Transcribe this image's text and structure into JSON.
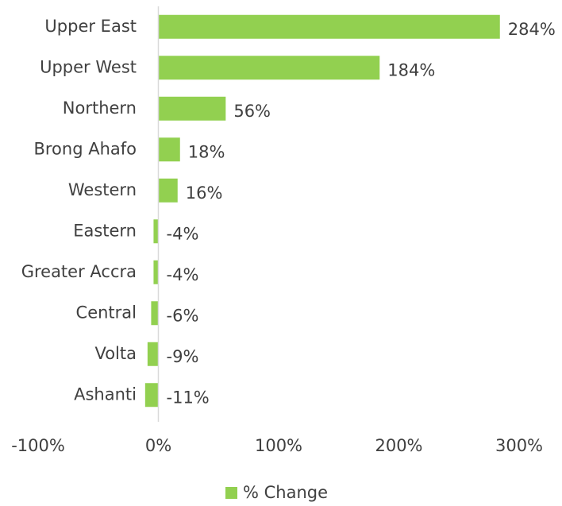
{
  "chart_data": {
    "type": "bar",
    "orientation": "horizontal",
    "categories": [
      "Upper East",
      "Upper West",
      "Northern",
      "Brong Ahafo",
      "Western",
      "Eastern",
      "Greater Accra",
      "Central",
      "Volta",
      "Ashanti"
    ],
    "series": [
      {
        "name": "% Change",
        "color": "#92d050",
        "values": [
          284,
          184,
          56,
          18,
          16,
          -4,
          -4,
          -6,
          -9,
          -11
        ],
        "value_labels": [
          "284%",
          "184%",
          "56%",
          "18%",
          "16%",
          "-4%",
          "-4%",
          "-6%",
          "-9%",
          "-11%"
        ]
      }
    ],
    "xlim": [
      -100,
      300
    ],
    "xticks": [
      {
        "value": -100,
        "label": "-100%"
      },
      {
        "value": 0,
        "label": "0%"
      },
      {
        "value": 100,
        "label": "100%"
      },
      {
        "value": 200,
        "label": "200%"
      },
      {
        "value": 300,
        "label": "300%"
      }
    ],
    "legend": "bottom"
  }
}
